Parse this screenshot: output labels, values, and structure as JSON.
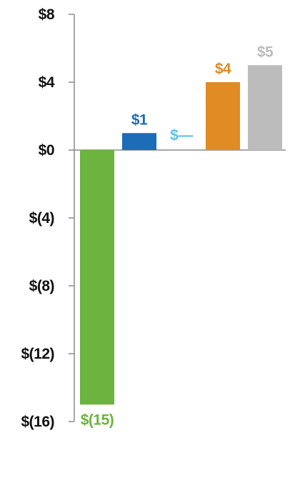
{
  "chart_data": {
    "type": "bar",
    "categories": [
      "",
      "",
      "",
      "",
      ""
    ],
    "values": [
      -15,
      1,
      0,
      4,
      5
    ],
    "data_labels": [
      "$(15)",
      "$1",
      "$—",
      "$4",
      "$5"
    ],
    "colors": [
      "#6db33f",
      "#1c6cb7",
      "#5bc2e7",
      "#e08b24",
      "#bcbcbc"
    ],
    "ylim": [
      -16,
      8
    ],
    "yticks": [
      8,
      4,
      0,
      -4,
      -8,
      -12,
      -16
    ],
    "ytick_labels": [
      "$8",
      "$4",
      "$0",
      "$(4)",
      "$(8)",
      "$(12)",
      "$(16)"
    ],
    "title": "",
    "xlabel": "",
    "ylabel": "",
    "grid": false,
    "legend": "none",
    "axis_color": "#8a8a8a"
  }
}
